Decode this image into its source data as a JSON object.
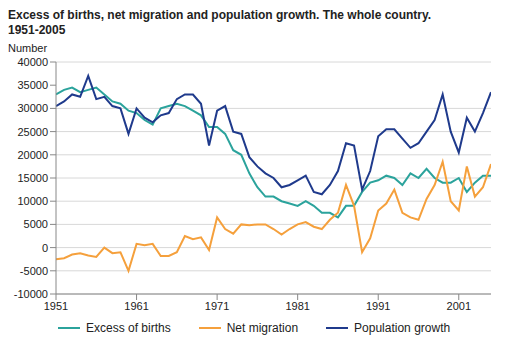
{
  "chart_data": {
    "type": "line",
    "title": "Excess of births, net migration and population growth. The whole country. 1951-2005",
    "y_label": "Number",
    "x": [
      1951,
      1952,
      1953,
      1954,
      1955,
      1956,
      1957,
      1958,
      1959,
      1960,
      1961,
      1962,
      1963,
      1964,
      1965,
      1966,
      1967,
      1968,
      1969,
      1970,
      1971,
      1972,
      1973,
      1974,
      1975,
      1976,
      1977,
      1978,
      1979,
      1980,
      1981,
      1982,
      1983,
      1984,
      1985,
      1986,
      1987,
      1988,
      1989,
      1990,
      1991,
      1992,
      1993,
      1994,
      1995,
      1996,
      1997,
      1998,
      1999,
      2000,
      2001,
      2002,
      2003,
      2004,
      2005
    ],
    "xlim": [
      1951,
      2005
    ],
    "xticks": [
      1951,
      1961,
      1971,
      1981,
      1991,
      2001
    ],
    "ylim": [
      -10000,
      40000
    ],
    "yticks": [
      -10000,
      -5000,
      0,
      5000,
      10000,
      15000,
      20000,
      25000,
      30000,
      35000,
      40000
    ],
    "grid": true,
    "legend": "bottom",
    "series": [
      {
        "name": "Excess of births",
        "color": "#2ba39c",
        "values": [
          33000,
          34000,
          34500,
          33500,
          34000,
          34500,
          33000,
          31500,
          31000,
          29500,
          29000,
          27500,
          26500,
          30000,
          30500,
          31000,
          30500,
          29500,
          28500,
          26000,
          26000,
          24500,
          21000,
          20000,
          16000,
          13000,
          11000,
          11000,
          10000,
          9500,
          9000,
          10000,
          9000,
          7500,
          7500,
          6500,
          9000,
          9000,
          12000,
          14000,
          14500,
          15500,
          15000,
          13500,
          16000,
          15000,
          17000,
          15000,
          14000,
          14000,
          15000,
          12000,
          14000,
          15500,
          15500
        ]
      },
      {
        "name": "Net migration",
        "color": "#f5a03c",
        "values": [
          -2500,
          -2300,
          -1500,
          -1200,
          -1700,
          -2000,
          0,
          -1200,
          -1000,
          -5000,
          800,
          500,
          800,
          -1800,
          -1800,
          -1000,
          2500,
          1800,
          2200,
          -500,
          6500,
          4000,
          3000,
          5000,
          4800,
          5000,
          5000,
          4000,
          2800,
          4000,
          5000,
          5500,
          4500,
          4000,
          6000,
          7500,
          13500,
          9000,
          -1000,
          2000,
          8000,
          9500,
          12500,
          7500,
          6500,
          6000,
          10500,
          13500,
          18500,
          10000,
          8000,
          17500,
          11000,
          13000,
          18000
        ]
      },
      {
        "name": "Population growth",
        "color": "#1f3a8c",
        "values": [
          30500,
          31500,
          33000,
          32500,
          37000,
          32000,
          32500,
          30500,
          30000,
          24500,
          30000,
          28000,
          27000,
          28500,
          29000,
          32000,
          33000,
          33000,
          31000,
          22000,
          29500,
          30500,
          25000,
          24500,
          19500,
          17500,
          16000,
          15000,
          13000,
          13500,
          14500,
          15500,
          12000,
          11500,
          13500,
          16500,
          22500,
          22000,
          12500,
          16500,
          24000,
          25500,
          25500,
          23500,
          21500,
          22500,
          25000,
          27500,
          33000,
          25000,
          20500,
          28000,
          25000,
          29000,
          33500
        ]
      }
    ]
  }
}
